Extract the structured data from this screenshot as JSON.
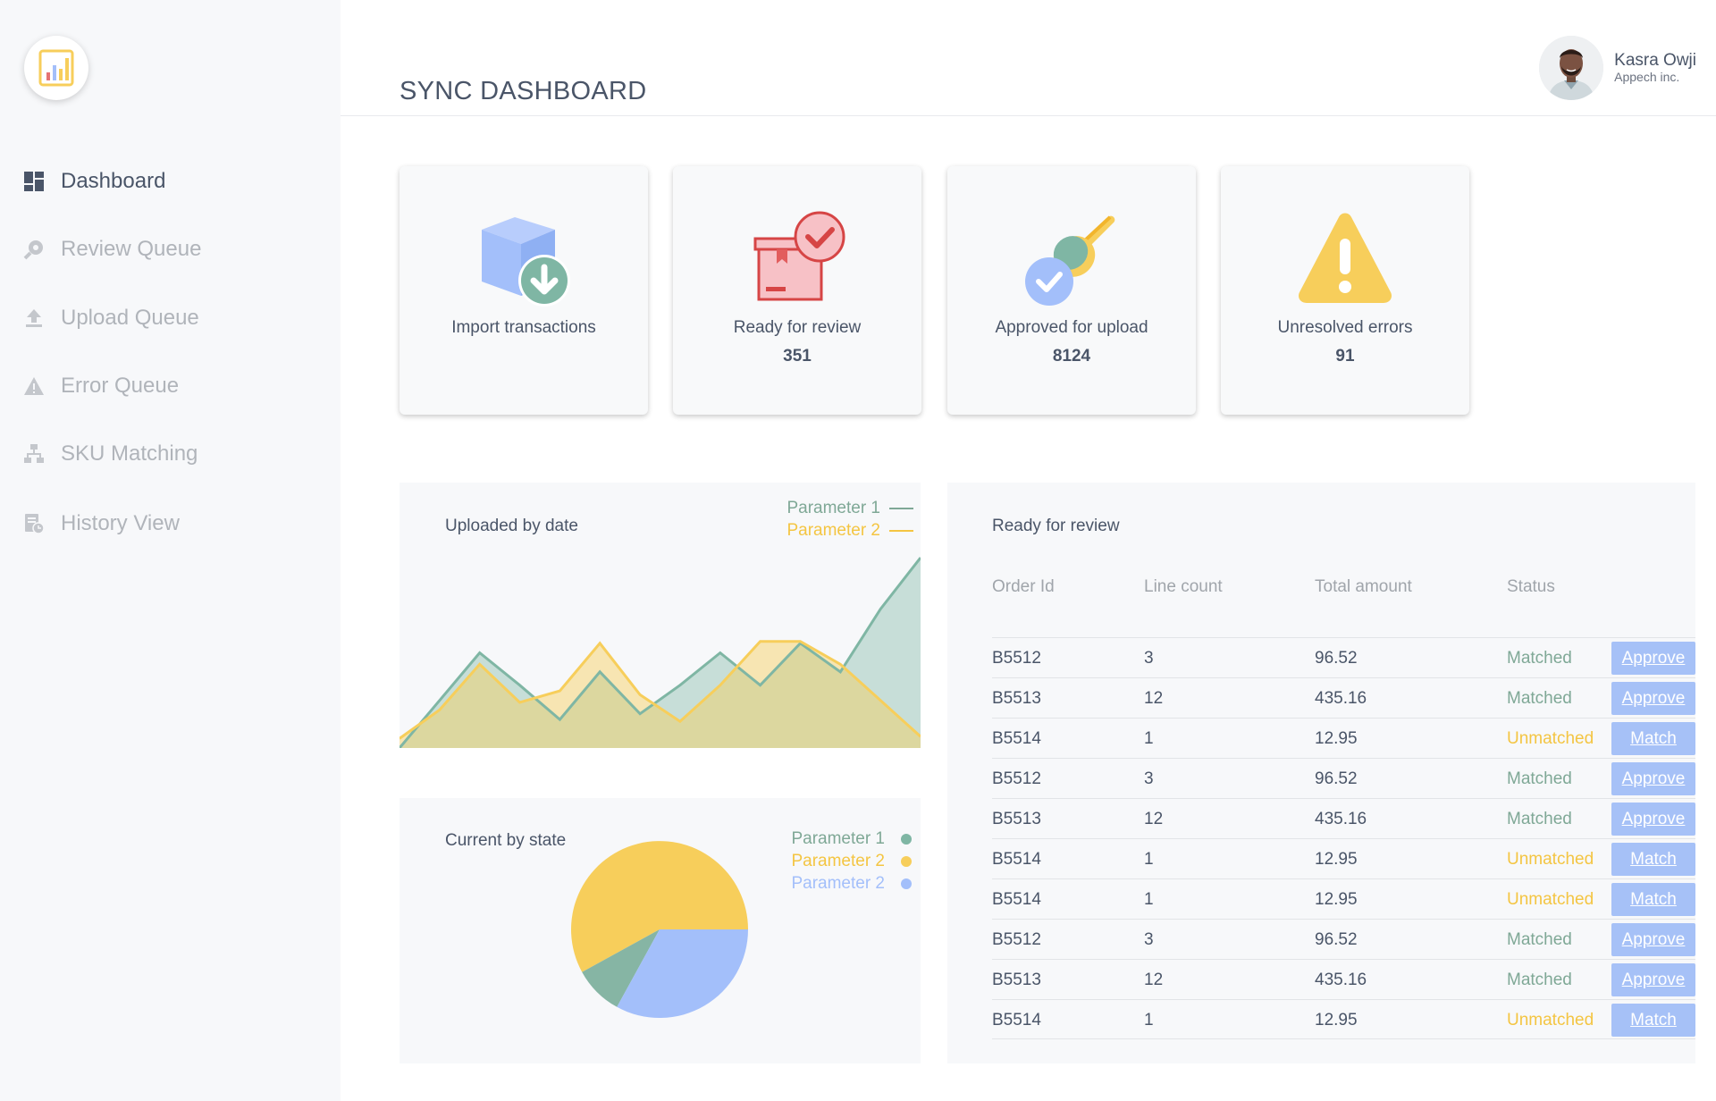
{
  "app": {
    "title": "SYNC DASHBOARD"
  },
  "colors": {
    "green": "#7fb6a4",
    "yellow": "#f7ce5b",
    "blue": "#a3bffa",
    "text": "#4a5568"
  },
  "sidebar": {
    "logo_icon": "bar-chart-logo-icon",
    "items": [
      {
        "label": "Dashboard",
        "icon": "dashboard-icon",
        "active": true
      },
      {
        "label": "Review Queue",
        "icon": "review-queue-icon",
        "active": false
      },
      {
        "label": "Upload Queue",
        "icon": "upload-icon",
        "active": false
      },
      {
        "label": "Error Queue",
        "icon": "warning-icon",
        "active": false
      },
      {
        "label": "SKU Matching",
        "icon": "sitemap-icon",
        "active": false
      },
      {
        "label": "History View",
        "icon": "history-icon",
        "active": false
      }
    ]
  },
  "user": {
    "name": "Kasra Owji",
    "company": "Appech inc."
  },
  "cards": [
    {
      "label": "Import transactions",
      "value": "",
      "icon": "box-download-icon"
    },
    {
      "label": "Ready for review",
      "value": "351",
      "icon": "box-check-icon"
    },
    {
      "label": "Approved for upload",
      "value": "8124",
      "icon": "stamp-icon"
    },
    {
      "label": "Unresolved errors",
      "value": "91",
      "icon": "warning-triangle-icon"
    }
  ],
  "area_chart": {
    "title": "Uploaded by date",
    "legend": [
      "Parameter 1",
      "Parameter 2"
    ]
  },
  "pie_chart": {
    "title": "Current by state",
    "legend": [
      "Parameter 1",
      "Parameter 2",
      "Parameter 2"
    ]
  },
  "chart_data": [
    {
      "type": "area",
      "title": "Uploaded by date",
      "x": [
        0,
        1,
        2,
        3,
        4,
        5,
        6,
        7,
        8,
        9,
        10,
        11,
        12,
        13
      ],
      "series": [
        {
          "name": "Parameter 1",
          "color": "#7fb6a4",
          "values": [
            0,
            25,
            50,
            33,
            15,
            40,
            18,
            33,
            50,
            33,
            55,
            40,
            73,
            100
          ]
        },
        {
          "name": "Parameter 2",
          "color": "#f7ce5b",
          "values": [
            5,
            20,
            44,
            24,
            30,
            55,
            28,
            14,
            33,
            56,
            56,
            44,
            25,
            6
          ]
        }
      ],
      "ylim": [
        0,
        100
      ],
      "legend_position": "top-right",
      "grid": false
    },
    {
      "type": "pie",
      "title": "Current by state",
      "labels": [
        "Parameter 1",
        "Parameter 2",
        "Parameter 2"
      ],
      "colors": [
        "#86b5a4",
        "#f7ce5b",
        "#a3bffa"
      ],
      "values": [
        9,
        58,
        33
      ],
      "legend_position": "top-right"
    }
  ],
  "review_table": {
    "title": "Ready for review",
    "columns": [
      "Order Id",
      "Line count",
      "Total amount",
      "Status"
    ],
    "rows": [
      {
        "order": "B5512",
        "lines": "3",
        "amount": "96.52",
        "status": "Matched",
        "action": "Approve"
      },
      {
        "order": "B5513",
        "lines": "12",
        "amount": "435.16",
        "status": "Matched",
        "action": "Approve"
      },
      {
        "order": "B5514",
        "lines": "1",
        "amount": "12.95",
        "status": "Unmatched",
        "action": "Match"
      },
      {
        "order": "B5512",
        "lines": "3",
        "amount": "96.52",
        "status": "Matched",
        "action": "Approve"
      },
      {
        "order": "B5513",
        "lines": "12",
        "amount": "435.16",
        "status": "Matched",
        "action": "Approve"
      },
      {
        "order": "B5514",
        "lines": "1",
        "amount": "12.95",
        "status": "Unmatched",
        "action": "Match"
      },
      {
        "order": "B5514",
        "lines": "1",
        "amount": "12.95",
        "status": "Unmatched",
        "action": "Match"
      },
      {
        "order": "B5512",
        "lines": "3",
        "amount": "96.52",
        "status": "Matched",
        "action": "Approve"
      },
      {
        "order": "B5513",
        "lines": "12",
        "amount": "435.16",
        "status": "Matched",
        "action": "Approve"
      },
      {
        "order": "B5514",
        "lines": "1",
        "amount": "12.95",
        "status": "Unmatched",
        "action": "Match"
      }
    ]
  }
}
